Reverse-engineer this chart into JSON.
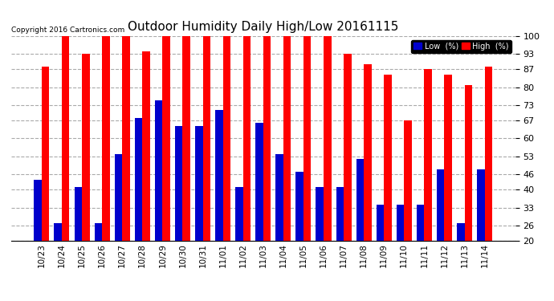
{
  "title": "Outdoor Humidity Daily High/Low 20161115",
  "copyright": "Copyright 2016 Cartronics.com",
  "categories": [
    "10/23",
    "10/24",
    "10/25",
    "10/26",
    "10/27",
    "10/28",
    "10/29",
    "10/30",
    "10/31",
    "11/01",
    "11/02",
    "11/03",
    "11/04",
    "11/05",
    "11/06",
    "11/07",
    "11/08",
    "11/09",
    "11/10",
    "11/11",
    "11/12",
    "11/13",
    "11/14"
  ],
  "high_values": [
    88,
    100,
    93,
    100,
    100,
    94,
    100,
    100,
    100,
    100,
    100,
    100,
    100,
    100,
    100,
    93,
    89,
    85,
    67,
    87,
    85,
    81,
    88
  ],
  "low_values": [
    44,
    27,
    41,
    27,
    54,
    68,
    75,
    65,
    65,
    71,
    41,
    66,
    54,
    47,
    41,
    41,
    52,
    34,
    34,
    34,
    48,
    27,
    48
  ],
  "high_color": "#ff0000",
  "low_color": "#0000cc",
  "bg_color": "#ffffff",
  "plot_bg_color": "#ffffff",
  "grid_color": "#aaaaaa",
  "yticks": [
    20,
    26,
    33,
    40,
    46,
    53,
    60,
    67,
    73,
    80,
    87,
    93,
    100
  ],
  "ylim_min": 20,
  "ylim_max": 100,
  "bar_width": 0.38,
  "bar_bottom": 20,
  "legend_low_label": "Low  (%)",
  "legend_high_label": "High  (%)"
}
